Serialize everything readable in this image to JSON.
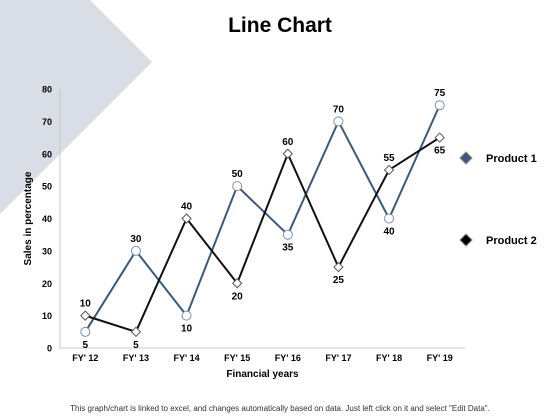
{
  "slide": {
    "title": "Line Chart",
    "footer": "This graph/chart is linked to excel, and changes automatically based on data. Just left click on it and select \"Edit Data\".",
    "colors": {
      "decor_triangle": "#d9dde5",
      "background": "#ffffff"
    }
  },
  "chart_data": {
    "type": "line",
    "title": "",
    "xlabel": "Financial years",
    "ylabel": "Sales in percentage",
    "categories": [
      "FY' 12",
      "FY' 13",
      "FY' 14",
      "FY' 15",
      "FY' 16",
      "FY' 17",
      "FY' 18",
      "FY' 19"
    ],
    "ylim": [
      0,
      80
    ],
    "yticks": [
      0,
      10,
      20,
      30,
      40,
      50,
      60,
      70,
      80
    ],
    "grid": false,
    "legend_position": "right",
    "series": [
      {
        "name": "Product 1",
        "values": [
          5,
          30,
          10,
          50,
          35,
          70,
          40,
          75
        ],
        "color": "#3a5a7f",
        "marker": "circle"
      },
      {
        "name": "Product 2",
        "values": [
          10,
          5,
          40,
          20,
          60,
          25,
          55,
          65
        ],
        "color": "#111111",
        "marker": "diamond"
      }
    ]
  }
}
